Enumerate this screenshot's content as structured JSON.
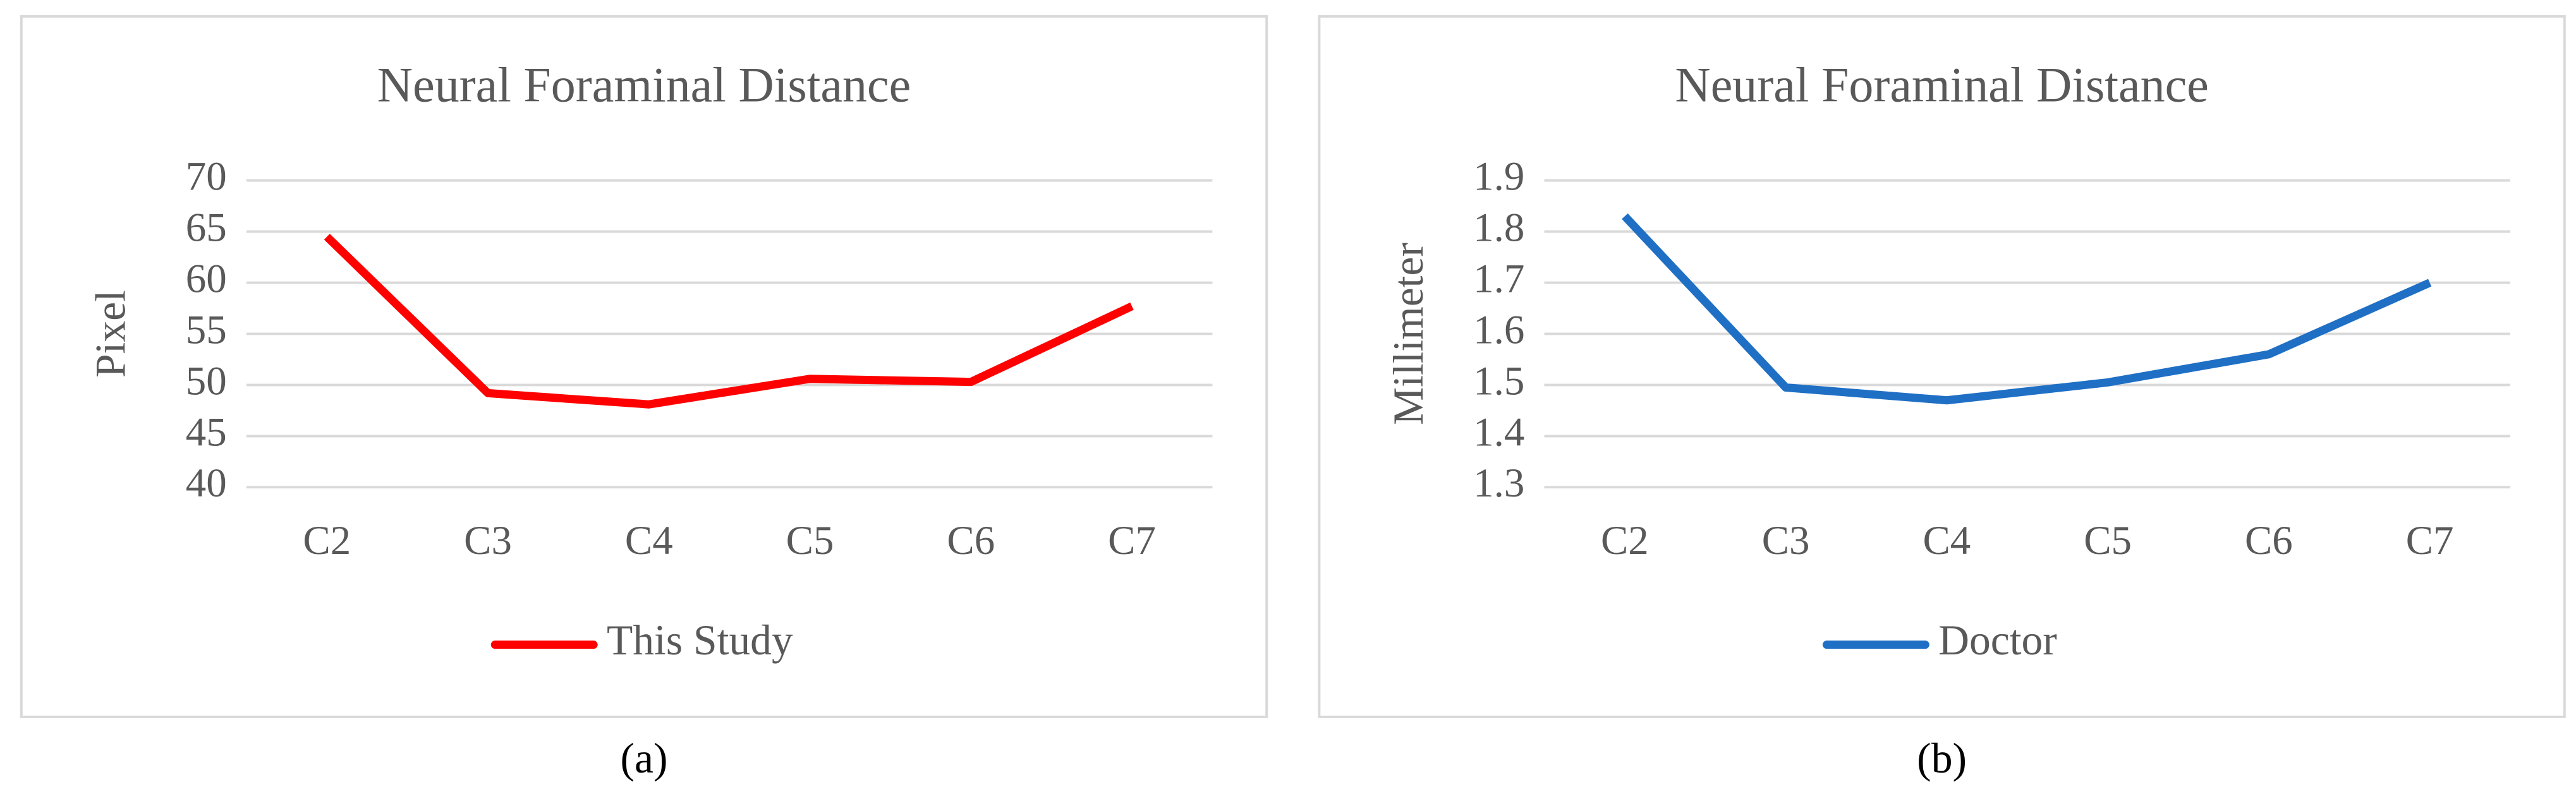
{
  "chart_data": [
    {
      "type": "line",
      "title": "Neural Foraminal Distance",
      "y_label": "Pixel",
      "categories": [
        "C2",
        "C3",
        "C4",
        "C5",
        "C6",
        "C7"
      ],
      "series": [
        {
          "name": "This Study",
          "color": "#ff0000",
          "values": [
            64.5,
            49.2,
            48.1,
            50.6,
            50.3,
            57.7
          ]
        }
      ],
      "ylim": [
        40,
        70
      ],
      "yticks": [
        40,
        45,
        50,
        55,
        60,
        65,
        70
      ],
      "grid": true,
      "legend": "bottom",
      "caption": "(a)"
    },
    {
      "type": "line",
      "title": "Neural Foraminal Distance",
      "y_label": "Millimeter",
      "categories": [
        "C2",
        "C3",
        "C4",
        "C5",
        "C6",
        "C7"
      ],
      "series": [
        {
          "name": "Doctor",
          "color": "#1f6fc5",
          "values": [
            1.83,
            1.495,
            1.47,
            1.505,
            1.56,
            1.7
          ]
        }
      ],
      "ylim": [
        1.3,
        1.9
      ],
      "yticks": [
        1.3,
        1.4,
        1.5,
        1.6,
        1.7,
        1.8,
        1.9
      ],
      "grid": true,
      "legend": "bottom",
      "caption": "(b)"
    }
  ]
}
